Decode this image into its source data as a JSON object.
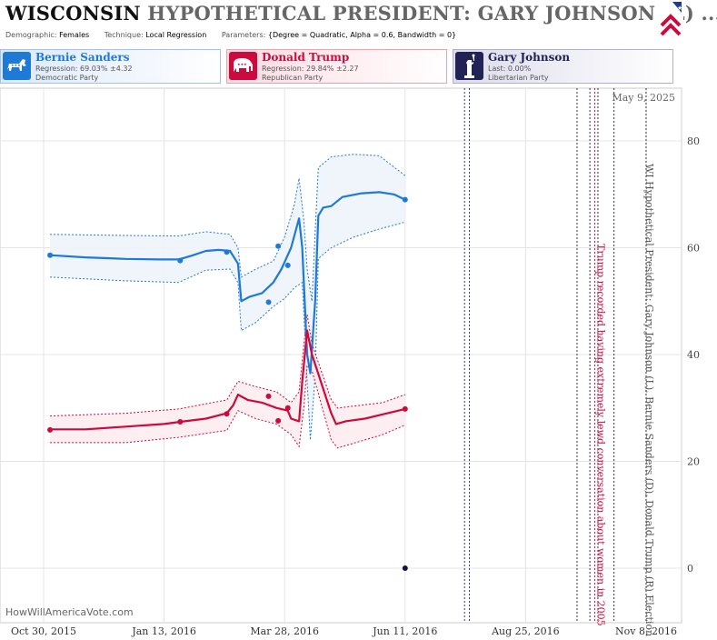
{
  "header": {
    "state": "WISCONSIN",
    "title_rest": "HYPOTHETICAL PRESIDENT: GARY JOHNSON (L) ...",
    "params": [
      {
        "label": "Demographic:",
        "value": "Females"
      },
      {
        "label": "Technique:",
        "value": "Local Regression"
      },
      {
        "label": "Parameters:",
        "value": "{Degree = Quadratic, Alpha = 0.6, Bandwidth = 0}"
      }
    ]
  },
  "candidates": [
    {
      "name": "Bernie Sanders",
      "stat": "Regression: 69.03% ±4.32",
      "party": "Democratic Party",
      "color": "#1e7ad6",
      "icon": "donkey-icon"
    },
    {
      "name": "Donald Trump",
      "stat": "Regression: 29.84% ±2.27",
      "party": "Republican Party",
      "color": "#cc0a3d",
      "icon": "elephant-icon"
    },
    {
      "name": "Gary Johnson",
      "stat": "Last: 0.00%",
      "party": "Libertarian Party",
      "color": "#222255",
      "icon": "statue-of-liberty-icon"
    }
  ],
  "watermark": "HowWillAmericaVote.com",
  "chart_data": {
    "type": "line",
    "title": "WISCONSIN HYPOTHETICAL PRESIDENT: GARY JOHNSON (L) ...",
    "date_label": "May 9, 2025",
    "x_ticks": [
      "Oct 30, 2015",
      "Jan 13, 2016",
      "Mar 28, 2016",
      "Jun 11, 2016",
      "Aug 25, 2016",
      "Nov 8, 2016"
    ],
    "x_range": [
      "2015-10-30",
      "2016-11-08"
    ],
    "y_ticks": [
      0,
      20,
      40,
      60,
      80
    ],
    "ylim": [
      -8.5,
      89
    ],
    "grid": true,
    "series": [
      {
        "name": "Bernie Sanders",
        "color": "#1e7ad6",
        "band_color": "#eef4fc",
        "trend": [
          [
            "2015-11-03",
            58.6
          ],
          [
            "2015-11-25",
            58.2
          ],
          [
            "2015-12-20",
            57.9
          ],
          [
            "2016-01-10",
            57.8
          ],
          [
            "2016-01-22",
            57.8
          ],
          [
            "2016-01-30",
            58.5
          ],
          [
            "2016-02-08",
            59.4
          ],
          [
            "2016-02-16",
            59.6
          ],
          [
            "2016-02-23",
            59.4
          ],
          [
            "2016-02-28",
            57.0
          ],
          [
            "2016-03-01",
            50.0
          ],
          [
            "2016-03-06",
            50.8
          ],
          [
            "2016-03-14",
            51.5
          ],
          [
            "2016-03-21",
            53.5
          ],
          [
            "2016-03-26",
            56.0
          ],
          [
            "2016-04-01",
            60.0
          ],
          [
            "2016-04-06",
            65.5
          ],
          [
            "2016-04-08",
            60.0
          ],
          [
            "2016-04-11",
            40.0
          ],
          [
            "2016-04-13",
            36.5
          ],
          [
            "2016-04-16",
            50.0
          ],
          [
            "2016-04-18",
            66.0
          ],
          [
            "2016-04-21",
            67.5
          ],
          [
            "2016-04-26",
            67.8
          ],
          [
            "2016-05-03",
            69.5
          ],
          [
            "2016-05-15",
            70.2
          ],
          [
            "2016-05-26",
            70.4
          ],
          [
            "2016-06-04",
            70.0
          ],
          [
            "2016-06-11",
            69.0
          ]
        ],
        "upper": [
          [
            "2015-11-03",
            62.5
          ],
          [
            "2015-12-20",
            62.3
          ],
          [
            "2016-01-22",
            62.2
          ],
          [
            "2016-02-08",
            63.0
          ],
          [
            "2016-02-23",
            62.5
          ],
          [
            "2016-02-28",
            60.0
          ],
          [
            "2016-03-01",
            54.5
          ],
          [
            "2016-03-10",
            56.0
          ],
          [
            "2016-03-21",
            57.5
          ],
          [
            "2016-03-28",
            62.0
          ],
          [
            "2016-04-03",
            68.0
          ],
          [
            "2016-04-06",
            73.0
          ],
          [
            "2016-04-09",
            65.0
          ],
          [
            "2016-04-11",
            56.0
          ],
          [
            "2016-04-14",
            50.0
          ],
          [
            "2016-04-16",
            63.0
          ],
          [
            "2016-04-18",
            75.0
          ],
          [
            "2016-04-26",
            77.0
          ],
          [
            "2016-05-10",
            77.5
          ],
          [
            "2016-05-26",
            77.2
          ],
          [
            "2016-06-11",
            73.5
          ]
        ],
        "lower": [
          [
            "2015-11-03",
            54.5
          ],
          [
            "2015-12-20",
            53.8
          ],
          [
            "2016-01-22",
            53.5
          ],
          [
            "2016-02-08",
            55.8
          ],
          [
            "2016-02-23",
            56.0
          ],
          [
            "2016-02-28",
            53.5
          ],
          [
            "2016-03-01",
            44.5
          ],
          [
            "2016-03-10",
            46.0
          ],
          [
            "2016-03-21",
            49.0
          ],
          [
            "2016-03-28",
            50.5
          ],
          [
            "2016-04-03",
            52.5
          ],
          [
            "2016-04-08",
            53.5
          ],
          [
            "2016-04-11",
            35.0
          ],
          [
            "2016-04-13",
            24.0
          ],
          [
            "2016-04-16",
            36.0
          ],
          [
            "2016-04-18",
            58.0
          ],
          [
            "2016-04-26",
            60.0
          ],
          [
            "2016-05-10",
            62.0
          ],
          [
            "2016-05-26",
            63.5
          ],
          [
            "2016-06-11",
            64.8
          ]
        ],
        "points": [
          [
            "2015-11-03",
            58.6
          ],
          [
            "2016-01-23",
            57.6
          ],
          [
            "2016-02-21",
            59.2
          ],
          [
            "2016-03-18",
            49.8
          ],
          [
            "2016-03-24",
            60.3
          ],
          [
            "2016-03-30",
            56.7
          ],
          [
            "2016-06-11",
            69.0
          ]
        ]
      },
      {
        "name": "Donald Trump",
        "color": "#cc0a3d",
        "band_color": "#fcecef",
        "trend": [
          [
            "2015-11-03",
            26.0
          ],
          [
            "2015-11-25",
            26.0
          ],
          [
            "2015-12-20",
            26.5
          ],
          [
            "2016-01-13",
            27.0
          ],
          [
            "2016-01-23",
            27.4
          ],
          [
            "2016-02-08",
            28.0
          ],
          [
            "2016-02-21",
            29.0
          ],
          [
            "2016-02-25",
            30.5
          ],
          [
            "2016-02-28",
            32.5
          ],
          [
            "2016-03-05",
            31.5
          ],
          [
            "2016-03-14",
            31.0
          ],
          [
            "2016-03-23",
            30.0
          ],
          [
            "2016-03-30",
            29.5
          ],
          [
            "2016-04-01",
            28.0
          ],
          [
            "2016-04-06",
            27.5
          ],
          [
            "2016-04-08",
            35.0
          ],
          [
            "2016-04-11",
            44.5
          ],
          [
            "2016-04-14",
            40.0
          ],
          [
            "2016-04-26",
            29.0
          ],
          [
            "2016-04-29",
            27.0
          ],
          [
            "2016-05-05",
            27.5
          ],
          [
            "2016-05-17",
            28.0
          ],
          [
            "2016-05-28",
            28.8
          ],
          [
            "2016-06-11",
            29.8
          ]
        ],
        "upper": [
          [
            "2015-11-03",
            28.5
          ],
          [
            "2015-12-20",
            29.0
          ],
          [
            "2016-01-22",
            29.8
          ],
          [
            "2016-02-21",
            31.5
          ],
          [
            "2016-02-28",
            35.0
          ],
          [
            "2016-03-10",
            34.0
          ],
          [
            "2016-03-23",
            33.0
          ],
          [
            "2016-04-01",
            31.0
          ],
          [
            "2016-04-06",
            33.0
          ],
          [
            "2016-04-09",
            42.0
          ],
          [
            "2016-04-11",
            47.5
          ],
          [
            "2016-04-14",
            42.0
          ],
          [
            "2016-04-26",
            31.5
          ],
          [
            "2016-04-30",
            30.0
          ],
          [
            "2016-05-28",
            31.0
          ],
          [
            "2016-06-11",
            32.5
          ]
        ],
        "lower": [
          [
            "2015-11-03",
            23.5
          ],
          [
            "2015-12-20",
            23.5
          ],
          [
            "2016-01-22",
            24.5
          ],
          [
            "2016-02-21",
            25.8
          ],
          [
            "2016-02-28",
            29.5
          ],
          [
            "2016-03-10",
            28.0
          ],
          [
            "2016-03-23",
            27.0
          ],
          [
            "2016-04-01",
            25.0
          ],
          [
            "2016-04-06",
            22.8
          ],
          [
            "2016-04-09",
            30.0
          ],
          [
            "2016-04-11",
            38.0
          ],
          [
            "2016-04-14",
            37.0
          ],
          [
            "2016-04-26",
            24.0
          ],
          [
            "2016-04-30",
            22.5
          ],
          [
            "2016-05-28",
            25.0
          ],
          [
            "2016-06-11",
            26.8
          ]
        ],
        "points": [
          [
            "2015-11-03",
            25.9
          ],
          [
            "2016-01-23",
            27.4
          ],
          [
            "2016-02-21",
            28.9
          ],
          [
            "2016-03-18",
            32.2
          ],
          [
            "2016-03-24",
            27.6
          ],
          [
            "2016-03-30",
            30.0
          ],
          [
            "2016-06-11",
            29.8
          ]
        ]
      },
      {
        "name": "Gary Johnson",
        "color": "#111144",
        "points": [
          [
            "2016-06-11",
            0.0
          ]
        ]
      }
    ],
    "event_lines": [
      {
        "date": "2016-07-18",
        "color": "#3333aa",
        "style": "dotted"
      },
      {
        "date": "2016-07-21",
        "color": "#3333aa",
        "style": "dotted"
      },
      {
        "date": "2016-09-26",
        "color": "#333333",
        "style": "dotted"
      },
      {
        "date": "2016-10-04",
        "color": "#333333",
        "style": "dotted"
      },
      {
        "date": "2016-10-07",
        "color": "#cc0a3d",
        "style": "dotted"
      },
      {
        "date": "2016-10-09",
        "color": "#333333",
        "style": "dotted"
      },
      {
        "date": "2016-10-19",
        "color": "#333333",
        "style": "dotted"
      },
      {
        "date": "2016-11-08",
        "color": "#333333",
        "style": "dotted"
      }
    ],
    "annotations": [
      {
        "text": "Trump recorded having extremely lewd conversation about women in 2005",
        "date": "2016-10-07",
        "color": "#cc0a3d"
      },
      {
        "text": "WI Hypothetical President: Gary Johnson (L), Bernie Sanders (D), Donald Trump (R) Election",
        "date": "2016-11-08",
        "color": "#555555"
      }
    ]
  }
}
